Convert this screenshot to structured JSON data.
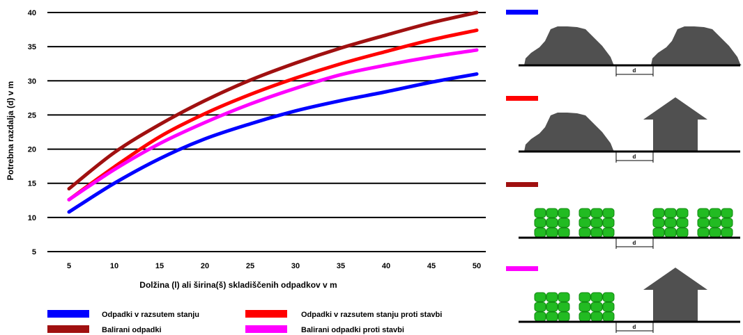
{
  "chart_data": {
    "type": "line",
    "title": "",
    "xlabel": "Dolžina (l) ali širina(š) skladiščenih odpadkov v m",
    "ylabel": "Potrebna razdalja (d) v m",
    "xlim": [
      5,
      50
    ],
    "ylim": [
      5,
      40
    ],
    "x_ticks": [
      5,
      10,
      15,
      20,
      25,
      30,
      35,
      40,
      45,
      50
    ],
    "y_ticks": [
      5,
      10,
      15,
      20,
      25,
      30,
      35,
      40
    ],
    "grid": "horizontal",
    "legend_position": "bottom",
    "x": [
      5,
      10,
      15,
      20,
      25,
      30,
      35,
      40,
      45,
      50
    ],
    "series": [
      {
        "name": "Odpadki v razsutem stanju",
        "color": "#0000ff",
        "values": [
          10.8,
          15.0,
          18.6,
          21.5,
          23.7,
          25.6,
          27.1,
          28.4,
          29.8,
          31.0
        ]
      },
      {
        "name": "Odpadki v razsutem stanju proti stavbi",
        "color": "#ff0000",
        "values": [
          12.6,
          17.4,
          21.8,
          25.2,
          28.0,
          30.4,
          32.5,
          34.3,
          36.0,
          37.4
        ]
      },
      {
        "name": "Balirani odpadki",
        "color": "#a01010",
        "values": [
          14.2,
          19.5,
          23.6,
          27.1,
          30.1,
          32.6,
          34.8,
          36.7,
          38.5,
          40.0
        ]
      },
      {
        "name": "Balirani odpadki proti stavbi",
        "color": "#ff00ff",
        "values": [
          12.6,
          17.0,
          20.8,
          23.9,
          26.6,
          28.9,
          30.9,
          32.3,
          33.5,
          34.5
        ]
      }
    ]
  },
  "diagrams": {
    "distance_label": "d",
    "panels": [
      {
        "color": "#0000ff",
        "left": "pile",
        "right": "pile"
      },
      {
        "color": "#ff0000",
        "left": "pile",
        "right": "building"
      },
      {
        "color": "#a01010",
        "left": "bales",
        "right": "bales"
      },
      {
        "color": "#ff00ff",
        "left": "bales",
        "right": "building"
      }
    ]
  }
}
